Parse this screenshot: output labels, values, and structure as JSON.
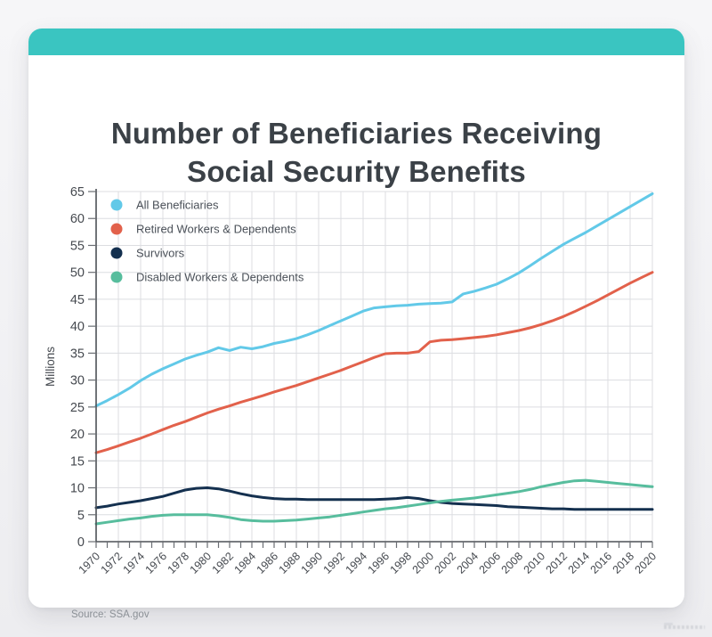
{
  "page": {
    "background_top": "#f6f6f8",
    "background_bottom": "#ededf0",
    "card_color": "#ffffff",
    "accent_bar_color": "#3ac5c1"
  },
  "title_lines": [
    "Number of Beneficiaries Receiving",
    "Social Security Benefits"
  ],
  "source": "Source: SSA.gov",
  "chart_data": {
    "type": "line",
    "title": "Number of Beneficiaries Receiving Social Security Benefits",
    "xlabel": "",
    "ylabel": "Millions",
    "ylim": [
      0,
      65
    ],
    "ytick_step": 5,
    "yticks": [
      0,
      5,
      10,
      15,
      20,
      25,
      30,
      35,
      40,
      45,
      50,
      55,
      60,
      65
    ],
    "grid": true,
    "gridline_color": "#dcdde1",
    "axis_color": "#4d5156",
    "tick_color": "#6a6e73",
    "tick_label_color": "#45494f",
    "legend_position": "top-left-inside",
    "legend_text_color": "#4a5058",
    "x": [
      1970,
      1971,
      1972,
      1973,
      1974,
      1975,
      1976,
      1977,
      1978,
      1979,
      1980,
      1981,
      1982,
      1983,
      1984,
      1985,
      1986,
      1987,
      1988,
      1989,
      1990,
      1991,
      1992,
      1993,
      1994,
      1995,
      1996,
      1997,
      1998,
      1999,
      2000,
      2001,
      2002,
      2003,
      2004,
      2005,
      2006,
      2007,
      2008,
      2009,
      2010,
      2011,
      2012,
      2013,
      2014,
      2015,
      2016,
      2017,
      2018,
      2019,
      2020
    ],
    "xtick_label_years": [
      1970,
      1972,
      1974,
      1976,
      1978,
      1980,
      1982,
      1984,
      1986,
      1988,
      1990,
      1992,
      1994,
      1996,
      1998,
      2000,
      2002,
      2004,
      2006,
      2008,
      2010,
      2012,
      2014,
      2016,
      2018,
      2020
    ],
    "series": [
      {
        "name": "All Beneficiaries",
        "color": "#62c9e8",
        "values": [
          25.2,
          26.2,
          27.3,
          28.5,
          29.9,
          31.1,
          32.1,
          33.0,
          33.9,
          34.6,
          35.2,
          36.0,
          35.5,
          36.1,
          35.8,
          36.2,
          36.8,
          37.2,
          37.7,
          38.4,
          39.2,
          40.1,
          41.0,
          41.9,
          42.8,
          43.4,
          43.6,
          43.8,
          43.9,
          44.1,
          44.2,
          44.3,
          44.5,
          46.0,
          46.5,
          47.1,
          47.8,
          48.8,
          49.9,
          51.2,
          52.6,
          53.9,
          55.2,
          56.3,
          57.4,
          58.6,
          59.8,
          61.0,
          62.2,
          63.4,
          64.6
        ]
      },
      {
        "name": "Retired Workers & Dependents",
        "color": "#e2614b",
        "values": [
          16.5,
          17.1,
          17.8,
          18.5,
          19.2,
          20.0,
          20.8,
          21.6,
          22.3,
          23.1,
          23.9,
          24.6,
          25.2,
          25.9,
          26.5,
          27.1,
          27.8,
          28.4,
          29.0,
          29.7,
          30.4,
          31.1,
          31.8,
          32.6,
          33.4,
          34.2,
          34.9,
          35.0,
          35.0,
          35.3,
          37.1,
          37.4,
          37.5,
          37.7,
          37.9,
          38.1,
          38.4,
          38.8,
          39.2,
          39.7,
          40.3,
          41.0,
          41.8,
          42.7,
          43.7,
          44.7,
          45.8,
          46.9,
          48.0,
          49.0,
          50.0
        ]
      },
      {
        "name": "Survivors",
        "color": "#14304f",
        "values": [
          6.3,
          6.6,
          7.0,
          7.3,
          7.6,
          8.0,
          8.4,
          9.0,
          9.6,
          9.9,
          10.0,
          9.8,
          9.4,
          8.9,
          8.5,
          8.2,
          8.0,
          7.9,
          7.9,
          7.8,
          7.8,
          7.8,
          7.8,
          7.8,
          7.8,
          7.8,
          7.9,
          8.0,
          8.2,
          8.0,
          7.6,
          7.3,
          7.1,
          7.0,
          6.9,
          6.8,
          6.7,
          6.5,
          6.4,
          6.3,
          6.2,
          6.1,
          6.1,
          6.0,
          6.0,
          6.0,
          6.0,
          6.0,
          6.0,
          6.0,
          6.0
        ]
      },
      {
        "name": "Disabled Workers & Dependents",
        "color": "#57bd9d",
        "values": [
          3.3,
          3.6,
          3.9,
          4.2,
          4.4,
          4.7,
          4.9,
          5.0,
          5.0,
          5.0,
          5.0,
          4.8,
          4.5,
          4.1,
          3.9,
          3.8,
          3.8,
          3.9,
          4.0,
          4.2,
          4.4,
          4.6,
          4.9,
          5.2,
          5.5,
          5.8,
          6.1,
          6.3,
          6.6,
          6.9,
          7.2,
          7.5,
          7.7,
          7.9,
          8.1,
          8.4,
          8.7,
          9.0,
          9.3,
          9.7,
          10.2,
          10.6,
          11.0,
          11.3,
          11.4,
          11.2,
          11.0,
          10.8,
          10.6,
          10.4,
          10.2
        ]
      }
    ]
  }
}
